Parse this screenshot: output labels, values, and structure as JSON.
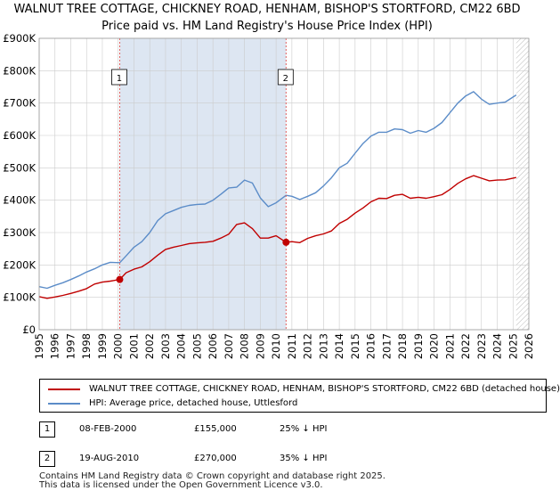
{
  "title_line1": "WALNUT TREE COTTAGE, CHICKNEY ROAD, HENHAM, BISHOP'S STORTFORD, CM22 6BD",
  "title_line2": "Price paid vs. HM Land Registry's House Price Index (HPI)",
  "colors": {
    "property": "#c00000",
    "hpi": "#5b8cc8",
    "shade": "#dde6f2",
    "grid": "#cccccc"
  },
  "legend": {
    "property_label": "WALNUT TREE COTTAGE, CHICKNEY ROAD, HENHAM, BISHOP'S STORTFORD, CM22 6BD (detached house)",
    "hpi_label": "HPI: Average price, detached house, Uttlesford"
  },
  "sales": [
    {
      "num": "1",
      "date": "08-FEB-2000",
      "price": "£155,000",
      "hpi_diff": "25% ↓ HPI"
    },
    {
      "num": "2",
      "date": "19-AUG-2010",
      "price": "£270,000",
      "hpi_diff": "35% ↓ HPI"
    }
  ],
  "footer_line1": "Contains HM Land Registry data © Crown copyright and database right 2025.",
  "footer_line2": "This data is licensed under the Open Government Licence v3.0.",
  "chart_data": {
    "type": "line",
    "title": "WALNUT TREE COTTAGE, CHICKNEY ROAD, HENHAM, BISHOP'S STORTFORD, CM22 6BD — Price paid vs. HM Land Registry's House Price Index (HPI)",
    "xlabel": "",
    "ylabel": "",
    "xlim": [
      1995,
      2026
    ],
    "ylim": [
      0,
      900000
    ],
    "x_ticks": [
      1995,
      1996,
      1997,
      1998,
      1999,
      2000,
      2001,
      2002,
      2003,
      2004,
      2005,
      2006,
      2007,
      2008,
      2009,
      2010,
      2011,
      2012,
      2013,
      2014,
      2015,
      2016,
      2017,
      2018,
      2019,
      2020,
      2021,
      2022,
      2023,
      2024,
      2025,
      2026
    ],
    "y_ticks": [
      {
        "value": 0,
        "label": "£0"
      },
      {
        "value": 100000,
        "label": "£100K"
      },
      {
        "value": 200000,
        "label": "£200K"
      },
      {
        "value": 300000,
        "label": "£300K"
      },
      {
        "value": 400000,
        "label": "£400K"
      },
      {
        "value": 500000,
        "label": "£500K"
      },
      {
        "value": 600000,
        "label": "£600K"
      },
      {
        "value": 700000,
        "label": "£700K"
      },
      {
        "value": 800000,
        "label": "£800K"
      },
      {
        "value": 900000,
        "label": "£900K"
      }
    ],
    "grid": true,
    "shaded_period": [
      2000.1,
      2010.63
    ],
    "forecast_from": 2025.2,
    "series": [
      {
        "name": "WALNUT TREE COTTAGE, CHICKNEY ROAD, HENHAM, BISHOP'S STORTFORD, CM22 6BD (detached house)",
        "x": [
          1995,
          1995.5,
          1996,
          1996.5,
          1997,
          1997.5,
          1998,
          1998.5,
          1999,
          1999.5,
          2000.1,
          2000.5,
          2001,
          2001.5,
          2002,
          2002.5,
          2003,
          2003.5,
          2004,
          2004.5,
          2005,
          2005.5,
          2006,
          2006.5,
          2007,
          2007.5,
          2008,
          2008.5,
          2009,
          2009.5,
          2010,
          2010.63,
          2011,
          2011.5,
          2012,
          2012.5,
          2013,
          2013.5,
          2014,
          2014.5,
          2015,
          2015.5,
          2016,
          2016.5,
          2017,
          2017.5,
          2018,
          2018.5,
          2019,
          2019.5,
          2020,
          2020.5,
          2021,
          2021.5,
          2022,
          2022.5,
          2023,
          2023.5,
          2024,
          2024.5,
          2025.2
        ],
        "values": [
          102000,
          97000,
          101000,
          106000,
          112000,
          119000,
          127000,
          141000,
          147000,
          150000,
          155000,
          176000,
          187000,
          194000,
          210000,
          230000,
          248000,
          255000,
          260000,
          266000,
          268000,
          270000,
          273000,
          283000,
          295000,
          325000,
          330000,
          312000,
          283000,
          283000,
          290000,
          270000,
          272000,
          269000,
          282000,
          290000,
          296000,
          305000,
          328000,
          341000,
          360000,
          376000,
          395000,
          406000,
          405000,
          415000,
          418000,
          406000,
          409000,
          406000,
          411000,
          417000,
          433000,
          452000,
          466000,
          476000,
          468000,
          460000,
          462000,
          463000,
          470000
        ]
      },
      {
        "name": "HPI: Average price, detached house, Uttlesford",
        "x": [
          1995,
          1995.5,
          1996,
          1996.5,
          1997,
          1997.5,
          1998,
          1998.5,
          1999,
          1999.5,
          2000.1,
          2000.5,
          2001,
          2001.5,
          2002,
          2002.5,
          2003,
          2003.5,
          2004,
          2004.5,
          2005,
          2005.5,
          2006,
          2006.5,
          2007,
          2007.5,
          2008,
          2008.5,
          2009,
          2009.5,
          2010,
          2010.63,
          2011,
          2011.5,
          2012,
          2012.5,
          2013,
          2013.5,
          2014,
          2014.5,
          2015,
          2015.5,
          2016,
          2016.5,
          2017,
          2017.5,
          2018,
          2018.5,
          2019,
          2019.5,
          2020,
          2020.5,
          2021,
          2021.5,
          2022,
          2022.5,
          2023,
          2023.5,
          2024,
          2024.5,
          2025.2
        ],
        "values": [
          133000,
          128000,
          137000,
          145000,
          155000,
          166000,
          178000,
          188000,
          200000,
          208000,
          207000,
          228000,
          255000,
          272000,
          300000,
          337000,
          358000,
          368000,
          378000,
          384000,
          387000,
          388000,
          400000,
          418000,
          438000,
          440000,
          462000,
          453000,
          407000,
          380000,
          392000,
          415000,
          412000,
          402000,
          412000,
          423000,
          444000,
          469000,
          500000,
          514000,
          545000,
          575000,
          598000,
          610000,
          610000,
          620000,
          618000,
          607000,
          615000,
          610000,
          622000,
          640000,
          670000,
          700000,
          722000,
          735000,
          712000,
          696000,
          700000,
          703000,
          725000
        ]
      }
    ],
    "sale_markers": [
      {
        "label": "1",
        "x": 2000.1,
        "value": 155000
      },
      {
        "label": "2",
        "x": 2010.63,
        "value": 270000
      }
    ]
  }
}
